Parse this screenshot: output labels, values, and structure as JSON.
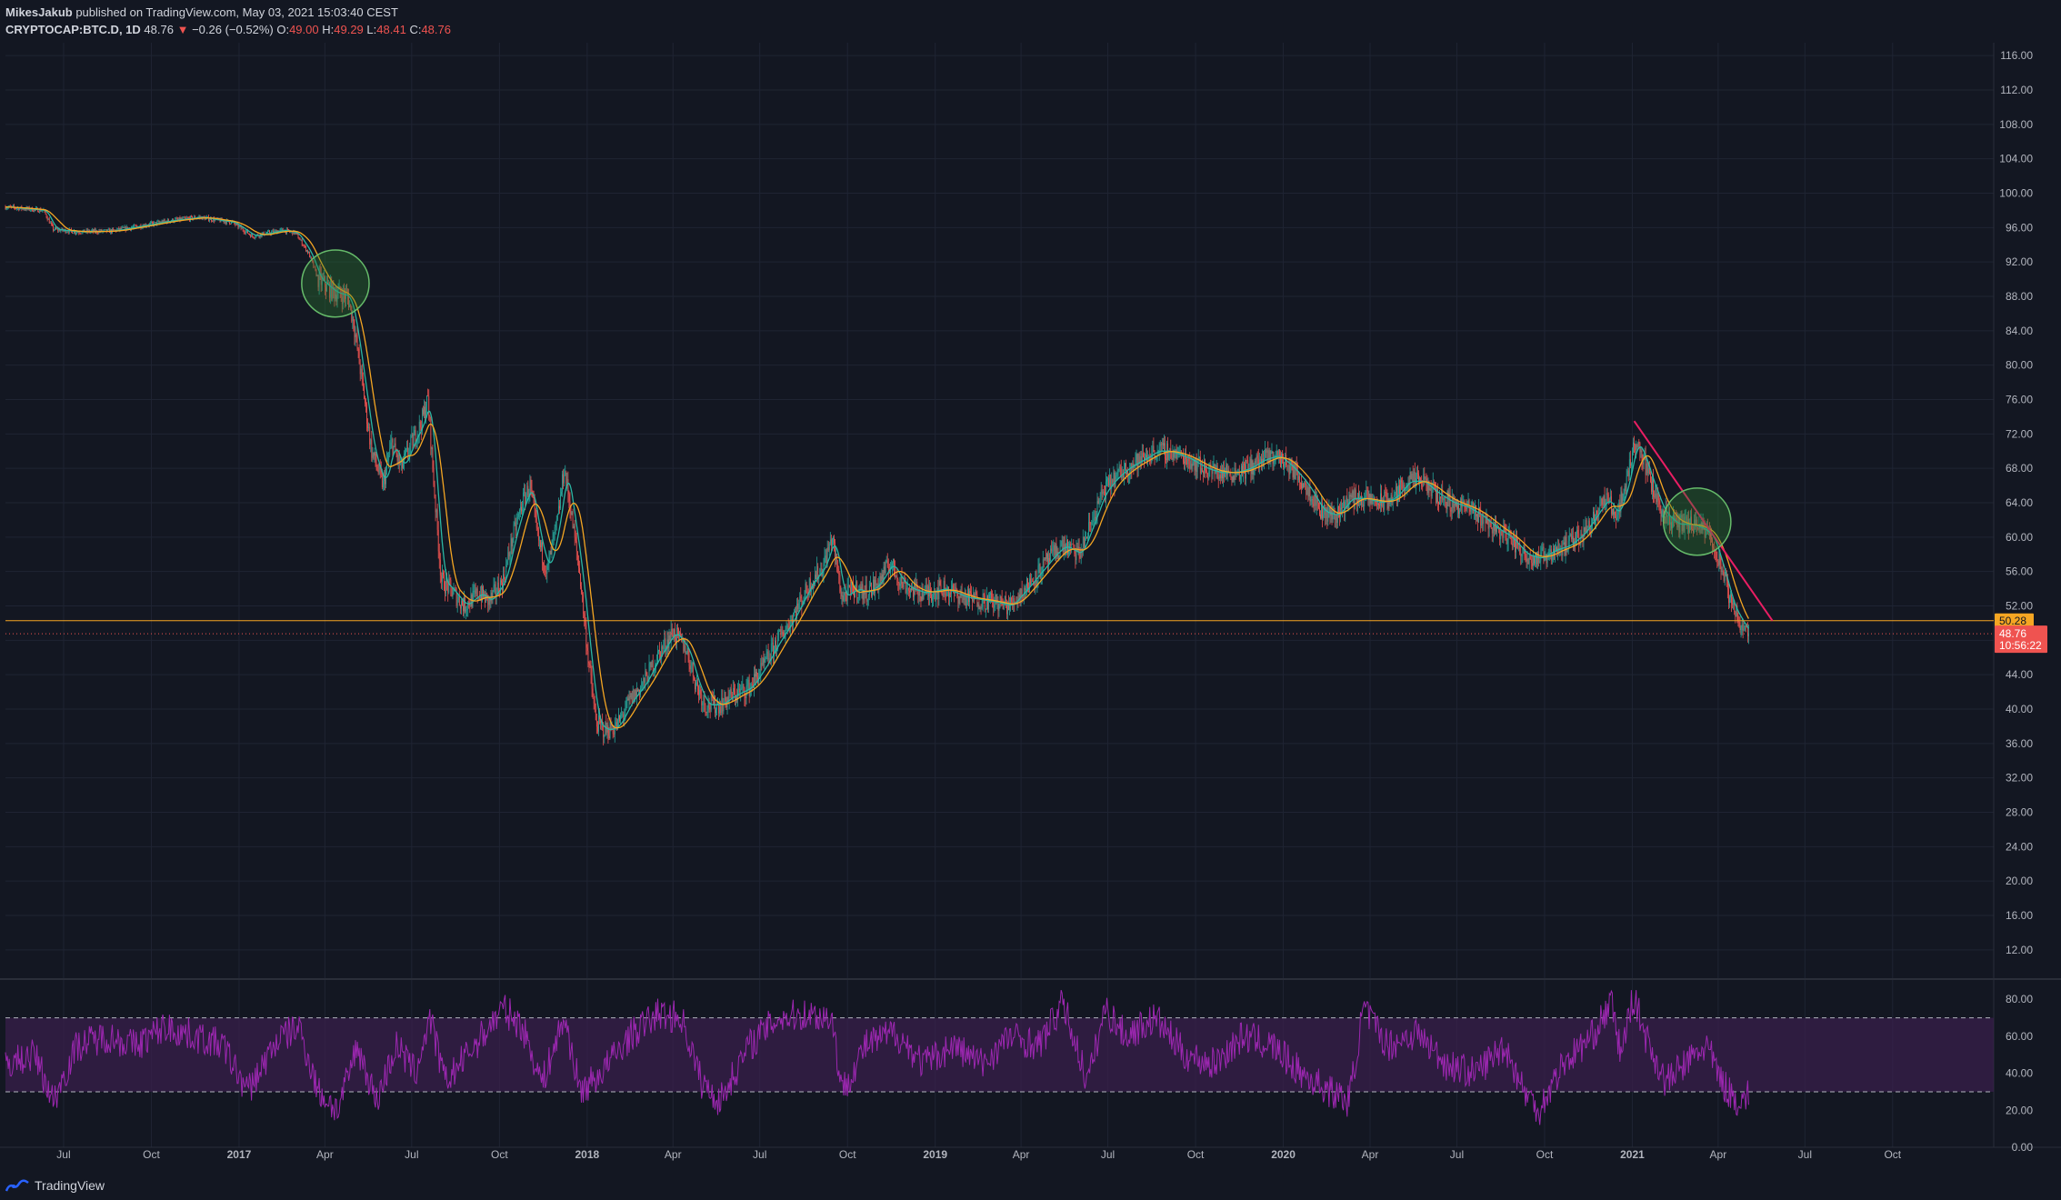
{
  "header": {
    "author": "MikesJakub",
    "published_text": "published on TradingView.com, May 03, 2021 15:03:40 CEST",
    "symbol": "CRYPTOCAP:BTC.D, 1D",
    "last": "48.76",
    "change_arrow": "▼",
    "change": "−0.26 (−0.52%)",
    "o_label": "O:",
    "o_value": "49.00",
    "h_label": "H:",
    "h_value": "49.29",
    "l_label": "L:",
    "l_value": "48.41",
    "c_label": "C:",
    "c_value": "48.76"
  },
  "footer": {
    "brand": "TradingView"
  },
  "colors": {
    "background": "#131722",
    "grid": "#1f2433",
    "up": "#26a69a",
    "down": "#ef5350",
    "ma_fast": "#2bb6a3",
    "ma_slow": "#f5a623",
    "trendline": "#e91e63",
    "horizontal_line": "#f5a623",
    "rsi": "#9c27b0",
    "rsi_band": "#3a1f4d",
    "highlight_circle": "#2e7d32"
  },
  "chart_data": [
    {
      "type": "line",
      "title": "CRYPTOCAP:BTC.D, 1D",
      "note_visual": "daily candlesticks with two moving averages",
      "x_ticks": [
        "Jul",
        "Oct",
        "2017",
        "Apr",
        "Jul",
        "Oct",
        "2018",
        "Apr",
        "Jul",
        "Oct",
        "2019",
        "Apr",
        "Jul",
        "Oct",
        "2020",
        "Apr",
        "Jul",
        "Oct",
        "2021",
        "Apr",
        "Jul",
        "Oct"
      ],
      "x_tick_dates": [
        "2016-07-01",
        "2016-10-01",
        "2017-01-01",
        "2017-04-01",
        "2017-07-01",
        "2017-10-01",
        "2018-01-01",
        "2018-04-01",
        "2018-07-01",
        "2018-10-01",
        "2019-01-01",
        "2019-04-01",
        "2019-07-01",
        "2019-10-01",
        "2020-01-01",
        "2020-04-01",
        "2020-07-01",
        "2020-10-01",
        "2021-01-01",
        "2021-04-01",
        "2021-07-01",
        "2021-10-01"
      ],
      "x_range": [
        "2016-05-01",
        "2022-01-15"
      ],
      "y_ticks": [
        12,
        16,
        20,
        24,
        28,
        32,
        36,
        40,
        44,
        48,
        52,
        56,
        60,
        64,
        68,
        72,
        76,
        80,
        84,
        88,
        92,
        96,
        100,
        104,
        108,
        112,
        116
      ],
      "y_tick_labels": [
        "12.00",
        "16.00",
        "20.00",
        "24.00",
        "28.00",
        "32.00",
        "36.00",
        "40.00",
        "44.00",
        "48.00",
        "52.00",
        "56.00",
        "60.00",
        "64.00",
        "68.00",
        "72.00",
        "76.00",
        "80.00",
        "84.00",
        "88.00",
        "92.00",
        "96.00",
        "100.00",
        "104.00",
        "108.00",
        "112.00",
        "116.00"
      ],
      "ylim": [
        8.6,
        117.5
      ],
      "series": [
        {
          "points": [
            [
              "2016-05-01",
              98.4
            ],
            [
              "2016-06-10",
              98.0
            ],
            [
              "2016-06-20",
              95.8
            ],
            [
              "2016-07-15",
              95.5
            ],
            [
              "2016-08-20",
              95.6
            ],
            [
              "2016-09-20",
              96.2
            ],
            [
              "2016-10-20",
              96.8
            ],
            [
              "2016-11-20",
              97.2
            ],
            [
              "2016-12-25",
              96.6
            ],
            [
              "2017-01-15",
              95.0
            ],
            [
              "2017-02-15",
              95.7
            ],
            [
              "2017-03-01",
              95.4
            ],
            [
              "2017-03-15",
              93.0
            ],
            [
              "2017-03-25",
              90.0
            ],
            [
              "2017-04-10",
              88.5
            ],
            [
              "2017-04-25",
              88.0
            ],
            [
              "2017-05-01",
              85.0
            ],
            [
              "2017-05-10",
              78.0
            ],
            [
              "2017-05-20",
              70.0
            ],
            [
              "2017-06-01",
              66.0
            ],
            [
              "2017-06-10",
              71.0
            ],
            [
              "2017-06-20",
              68.0
            ],
            [
              "2017-07-01",
              71.0
            ],
            [
              "2017-07-10",
              73.0
            ],
            [
              "2017-07-18",
              76.0
            ],
            [
              "2017-07-25",
              65.0
            ],
            [
              "2017-08-01",
              55.0
            ],
            [
              "2017-08-10",
              54.0
            ],
            [
              "2017-08-25",
              52.0
            ],
            [
              "2017-09-10",
              53.5
            ],
            [
              "2017-09-20",
              52.5
            ],
            [
              "2017-10-05",
              55.0
            ],
            [
              "2017-10-15",
              60.0
            ],
            [
              "2017-10-25",
              64.0
            ],
            [
              "2017-11-02",
              66.0
            ],
            [
              "2017-11-10",
              60.0
            ],
            [
              "2017-11-20",
              56.0
            ],
            [
              "2017-12-01",
              62.0
            ],
            [
              "2017-12-08",
              68.0
            ],
            [
              "2017-12-15",
              63.0
            ],
            [
              "2017-12-25",
              55.0
            ],
            [
              "2018-01-01",
              47.0
            ],
            [
              "2018-01-10",
              38.5
            ],
            [
              "2018-01-20",
              37.5
            ],
            [
              "2018-02-01",
              38.0
            ],
            [
              "2018-02-15",
              41.0
            ],
            [
              "2018-03-01",
              43.0
            ],
            [
              "2018-03-15",
              46.0
            ],
            [
              "2018-04-01",
              49.0
            ],
            [
              "2018-04-15",
              47.0
            ],
            [
              "2018-04-25",
              43.0
            ],
            [
              "2018-05-05",
              40.5
            ],
            [
              "2018-05-20",
              40.5
            ],
            [
              "2018-06-01",
              41.5
            ],
            [
              "2018-06-20",
              42.5
            ],
            [
              "2018-07-05",
              45.0
            ],
            [
              "2018-07-20",
              48.0
            ],
            [
              "2018-08-01",
              50.0
            ],
            [
              "2018-08-15",
              53.0
            ],
            [
              "2018-08-25",
              55.0
            ],
            [
              "2018-09-05",
              56.5
            ],
            [
              "2018-09-15",
              60.0
            ],
            [
              "2018-09-25",
              53.0
            ],
            [
              "2018-10-10",
              54.0
            ],
            [
              "2018-10-20",
              53.5
            ],
            [
              "2018-11-01",
              54.5
            ],
            [
              "2018-11-15",
              57.0
            ],
            [
              "2018-11-25",
              55.0
            ],
            [
              "2018-12-05",
              54.0
            ],
            [
              "2018-12-20",
              53.5
            ],
            [
              "2019-01-10",
              54.0
            ],
            [
              "2019-02-01",
              53.0
            ],
            [
              "2019-03-01",
              52.5
            ],
            [
              "2019-03-20",
              52.0
            ],
            [
              "2019-04-05",
              54.0
            ],
            [
              "2019-04-20",
              56.0
            ],
            [
              "2019-05-05",
              58.0
            ],
            [
              "2019-05-15",
              59.0
            ],
            [
              "2019-06-01",
              58.0
            ],
            [
              "2019-06-15",
              62.0
            ],
            [
              "2019-06-25",
              65.0
            ],
            [
              "2019-07-05",
              66.5
            ],
            [
              "2019-07-20",
              68.0
            ],
            [
              "2019-08-05",
              69.0
            ],
            [
              "2019-08-20",
              70.0
            ],
            [
              "2019-09-01",
              70.0
            ],
            [
              "2019-09-15",
              69.5
            ],
            [
              "2019-09-25",
              69.0
            ],
            [
              "2019-10-10",
              68.0
            ],
            [
              "2019-10-25",
              67.5
            ],
            [
              "2019-11-10",
              67.5
            ],
            [
              "2019-11-25",
              68.0
            ],
            [
              "2019-12-10",
              69.0
            ],
            [
              "2019-12-25",
              69.5
            ],
            [
              "2020-01-10",
              68.0
            ],
            [
              "2020-01-25",
              66.0
            ],
            [
              "2020-02-10",
              63.0
            ],
            [
              "2020-02-25",
              62.5
            ],
            [
              "2020-03-10",
              64.5
            ],
            [
              "2020-03-25",
              64.5
            ],
            [
              "2020-04-10",
              64.0
            ],
            [
              "2020-04-25",
              64.5
            ],
            [
              "2020-05-10",
              66.5
            ],
            [
              "2020-05-25",
              66.5
            ],
            [
              "2020-06-10",
              65.0
            ],
            [
              "2020-06-25",
              64.0
            ],
            [
              "2020-07-10",
              63.5
            ],
            [
              "2020-07-25",
              62.5
            ],
            [
              "2020-08-10",
              61.0
            ],
            [
              "2020-08-25",
              60.0
            ],
            [
              "2020-09-10",
              58.0
            ],
            [
              "2020-09-25",
              57.5
            ],
            [
              "2020-10-10",
              58.5
            ],
            [
              "2020-10-25",
              59.0
            ],
            [
              "2020-11-10",
              60.5
            ],
            [
              "2020-11-25",
              63.0
            ],
            [
              "2020-12-05",
              64.5
            ],
            [
              "2020-12-15",
              62.5
            ],
            [
              "2020-12-25",
              66.0
            ],
            [
              "2021-01-03",
              71.0
            ],
            [
              "2021-01-10",
              70.0
            ],
            [
              "2021-01-20",
              66.5
            ],
            [
              "2021-02-01",
              63.0
            ],
            [
              "2021-02-15",
              61.5
            ],
            [
              "2021-03-01",
              61.5
            ],
            [
              "2021-03-15",
              61.0
            ],
            [
              "2021-03-25",
              60.0
            ],
            [
              "2021-04-05",
              56.0
            ],
            [
              "2021-04-15",
              52.0
            ],
            [
              "2021-04-25",
              50.0
            ],
            [
              "2021-05-03",
              48.76
            ]
          ]
        }
      ],
      "annotations": {
        "horizontal_line_value": 50.28,
        "horizontal_line_label": "50.28",
        "last_price_value": 48.76,
        "last_price_label": "48.76",
        "countdown_label": "10:56:22",
        "trendline": [
          [
            "2021-01-03",
            73.5
          ],
          [
            "2021-05-28",
            50.28
          ]
        ],
        "circles": [
          {
            "center": [
              "2017-04-12",
              89.5
            ],
            "radius_days": 26,
            "radius_value": 3.9
          },
          {
            "center": [
              "2021-03-10",
              61.8
            ],
            "radius_days": 26,
            "radius_value": 3.9
          }
        ]
      }
    },
    {
      "type": "line",
      "title": "",
      "y_ticks": [
        0,
        20,
        40,
        60,
        80
      ],
      "y_tick_labels": [
        "0.00",
        "20.00",
        "40.00",
        "60.00",
        "80.00"
      ],
      "ylim": [
        0,
        87
      ],
      "band": [
        30,
        70
      ],
      "series": [
        {
          "points": [
            [
              "2016-05-01",
              45
            ],
            [
              "2016-06-01",
              50
            ],
            [
              "2016-06-20",
              25
            ],
            [
              "2016-07-15",
              55
            ],
            [
              "2016-08-15",
              60
            ],
            [
              "2016-09-15",
              55
            ],
            [
              "2016-10-15",
              65
            ],
            [
              "2016-11-15",
              60
            ],
            [
              "2016-12-15",
              55
            ],
            [
              "2017-01-10",
              30
            ],
            [
              "2017-02-10",
              58
            ],
            [
              "2017-03-05",
              65
            ],
            [
              "2017-03-25",
              30
            ],
            [
              "2017-04-15",
              20
            ],
            [
              "2017-05-05",
              55
            ],
            [
              "2017-05-25",
              25
            ],
            [
              "2017-06-15",
              55
            ],
            [
              "2017-07-05",
              40
            ],
            [
              "2017-07-20",
              70
            ],
            [
              "2017-08-05",
              35
            ],
            [
              "2017-09-05",
              55
            ],
            [
              "2017-10-05",
              75
            ],
            [
              "2017-10-25",
              65
            ],
            [
              "2017-11-15",
              35
            ],
            [
              "2017-12-08",
              70
            ],
            [
              "2017-12-25",
              30
            ],
            [
              "2018-01-15",
              40
            ],
            [
              "2018-02-15",
              60
            ],
            [
              "2018-03-15",
              72
            ],
            [
              "2018-04-10",
              70
            ],
            [
              "2018-05-01",
              35
            ],
            [
              "2018-05-20",
              25
            ],
            [
              "2018-06-20",
              55
            ],
            [
              "2018-07-20",
              70
            ],
            [
              "2018-08-20",
              72
            ],
            [
              "2018-09-15",
              70
            ],
            [
              "2018-09-25",
              30
            ],
            [
              "2018-10-20",
              55
            ],
            [
              "2018-11-20",
              62
            ],
            [
              "2018-12-20",
              45
            ],
            [
              "2019-01-20",
              55
            ],
            [
              "2019-02-20",
              45
            ],
            [
              "2019-03-20",
              60
            ],
            [
              "2019-04-20",
              55
            ],
            [
              "2019-05-15",
              78
            ],
            [
              "2019-06-10",
              35
            ],
            [
              "2019-06-28",
              75
            ],
            [
              "2019-07-20",
              60
            ],
            [
              "2019-08-20",
              70
            ],
            [
              "2019-09-20",
              50
            ],
            [
              "2019-10-20",
              45
            ],
            [
              "2019-11-20",
              60
            ],
            [
              "2019-12-20",
              55
            ],
            [
              "2020-01-20",
              40
            ],
            [
              "2020-02-20",
              30
            ],
            [
              "2020-03-10",
              25
            ],
            [
              "2020-03-25",
              75
            ],
            [
              "2020-04-20",
              55
            ],
            [
              "2020-05-20",
              62
            ],
            [
              "2020-06-20",
              45
            ],
            [
              "2020-07-20",
              40
            ],
            [
              "2020-08-20",
              55
            ],
            [
              "2020-09-10",
              30
            ],
            [
              "2020-09-25",
              20
            ],
            [
              "2020-10-20",
              45
            ],
            [
              "2020-11-20",
              60
            ],
            [
              "2020-12-10",
              78
            ],
            [
              "2020-12-20",
              50
            ],
            [
              "2021-01-02",
              82
            ],
            [
              "2021-01-15",
              60
            ],
            [
              "2021-02-05",
              35
            ],
            [
              "2021-02-25",
              45
            ],
            [
              "2021-03-20",
              55
            ],
            [
              "2021-04-05",
              35
            ],
            [
              "2021-04-20",
              25
            ],
            [
              "2021-05-03",
              28
            ]
          ]
        }
      ]
    }
  ]
}
